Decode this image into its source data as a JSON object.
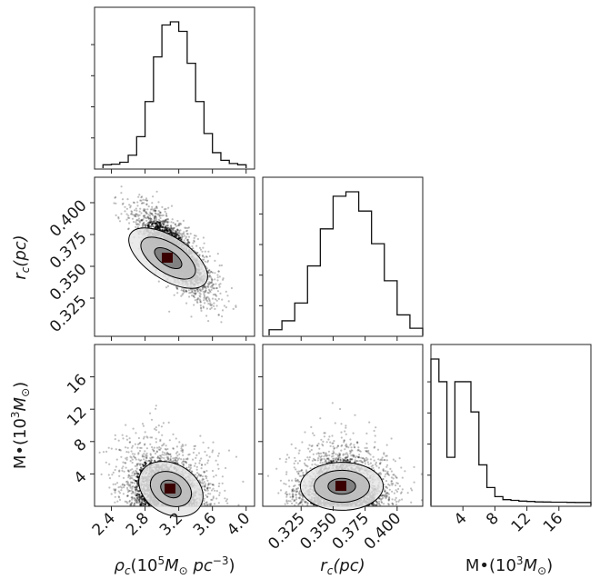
{
  "chart_data": [
    {
      "type": "histogram",
      "panel": "rho_c marginal",
      "x": [
        2.3,
        2.4,
        2.5,
        2.6,
        2.7,
        2.8,
        2.9,
        3.0,
        3.1,
        3.2,
        3.3,
        3.4,
        3.5,
        3.6,
        3.7,
        3.8,
        3.9,
        4.0
      ],
      "values": [
        1,
        2,
        5,
        16,
        45,
        100,
        170,
        220,
        225,
        210,
        160,
        100,
        50,
        20,
        8,
        3,
        1
      ],
      "xlim": [
        2.2,
        4.1
      ],
      "xticks": [
        2.4,
        2.8,
        3.2,
        3.6,
        4.0
      ],
      "xlabel": "ρ_c(10^5 M_⊙ pc^-3)"
    },
    {
      "type": "histogram",
      "panel": "r_c marginal",
      "x": [
        0.3,
        0.31,
        0.32,
        0.33,
        0.34,
        0.35,
        0.36,
        0.37,
        0.38,
        0.39,
        0.4,
        0.41
      ],
      "values": [
        2,
        8,
        20,
        45,
        70,
        92,
        95,
        82,
        60,
        35,
        12,
        3
      ],
      "xlim": [
        0.295,
        0.42
      ],
      "xticks": [
        "0.325",
        "0.350",
        "0.375",
        "0.400"
      ],
      "xlabel": "r_c(pc)"
    },
    {
      "type": "histogram",
      "panel": "M_bh marginal",
      "x": [
        0,
        1,
        2,
        3,
        4,
        5,
        6,
        7,
        8,
        9,
        10,
        11,
        12,
        13,
        14,
        15,
        16,
        17,
        18,
        19,
        20
      ],
      "values": [
        95,
        80,
        30,
        80,
        80,
        60,
        25,
        10,
        4,
        2,
        1.5,
        1,
        0.8,
        0.5,
        0.4,
        0.3,
        0.3,
        0.2,
        0.1,
        0.1
      ],
      "xlim": [
        0,
        20
      ],
      "xticks": [
        4,
        8,
        12,
        16
      ],
      "xlabel": "M•(10^3 M_⊙)"
    },
    {
      "type": "scatter-density",
      "panel": "rho_c vs r_c",
      "xlim": [
        2.2,
        4.1
      ],
      "ylim": [
        0.295,
        0.42
      ],
      "yticks": [
        "0.325",
        "0.350",
        "0.375",
        "0.400"
      ],
      "ylabel": "r_c(pc)"
    },
    {
      "type": "scatter-density",
      "panel": "rho_c vs M_bh",
      "xlim": [
        2.2,
        4.1
      ],
      "ylim": [
        0,
        20
      ],
      "yticks": [
        4,
        8,
        12,
        16
      ],
      "ylabel": "M•(10^3 M_⊙)"
    },
    {
      "type": "scatter-density",
      "panel": "r_c vs M_bh",
      "xlim": [
        0.295,
        0.42
      ],
      "ylim": [
        0,
        20
      ]
    }
  ],
  "labels": {
    "rho": {
      "main": "ρ",
      "sub": "c",
      "open": "(10",
      "exp": "5",
      "m": "M",
      "msub": "⊙",
      "pc": "pc",
      "pcexp": "−3",
      "close": ")"
    },
    "rc": {
      "main": "r",
      "sub": "c",
      "rest": "(pc)"
    },
    "mbh": {
      "main": "M•",
      "open": "(10",
      "exp": "3",
      "m": "M",
      "msub": "⊙",
      "close": ")"
    }
  }
}
